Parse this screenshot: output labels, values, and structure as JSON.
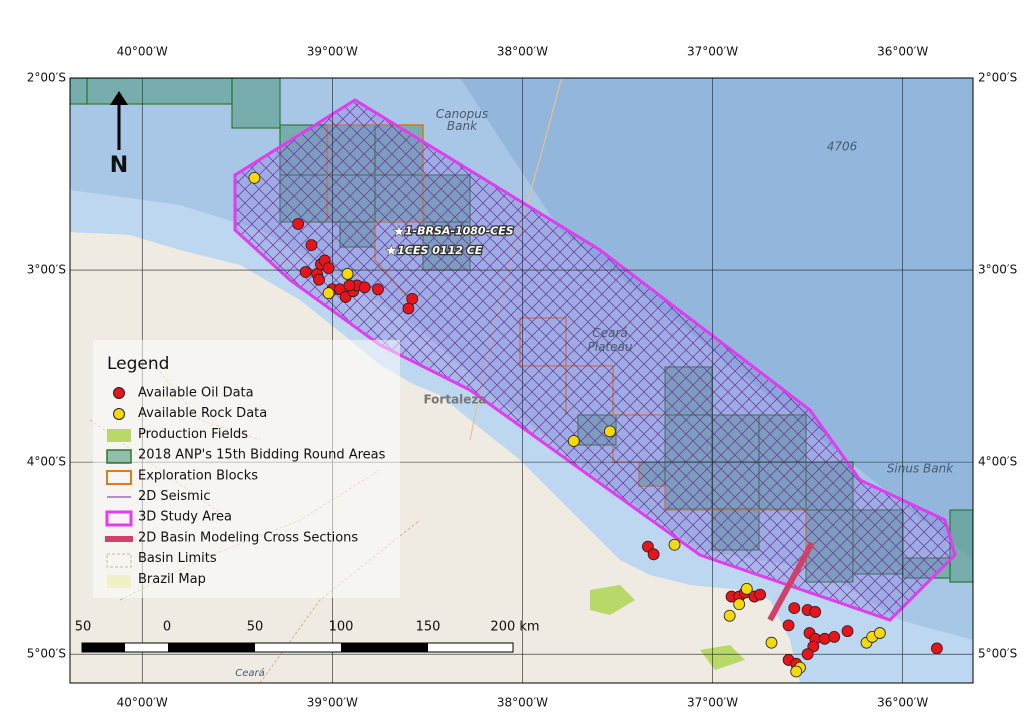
{
  "map": {
    "xlim": [
      -40.38,
      -35.63
    ],
    "ylim": [
      -2.0,
      -5.15
    ],
    "xticks": [
      {
        "value": -40,
        "label": "40°00′W"
      },
      {
        "value": -39,
        "label": "39°00′W"
      },
      {
        "value": -38,
        "label": "38°00′W"
      },
      {
        "value": -37,
        "label": "37°00′W"
      },
      {
        "value": -36,
        "label": "36°00′W"
      }
    ],
    "yticks": [
      {
        "value": -2,
        "label": "2°00′S"
      },
      {
        "value": -3,
        "label": "3°00′S"
      },
      {
        "value": -4,
        "label": "4°00′S"
      },
      {
        "value": -5,
        "label": "5°00′S"
      }
    ],
    "grid": true
  },
  "north_arrow": "N",
  "legend": {
    "title": "Legend",
    "items": [
      "Available Oil Data",
      "Available Rock Data",
      "Production Fields",
      "2018 ANP's 15th Bidding Round Areas",
      "Exploration Blocks",
      "2D Seismic",
      "3D Study Area",
      "2D Basin Modeling Cross Sections",
      "Basin Limits",
      "Brazil Map"
    ]
  },
  "oil_points": {
    "color": "#e8141c",
    "lon": [
      -39.18,
      -39.11,
      -39.14,
      -39.08,
      -39.06,
      -39.04,
      -39.02,
      -39.07,
      -39.0,
      -38.96,
      -38.93,
      -38.89,
      -38.87,
      -38.83,
      -38.76,
      -38.91,
      -38.58,
      -38.6,
      -37.34,
      -37.31,
      -36.9,
      -36.86,
      -36.83,
      -36.78,
      -36.75,
      -36.57,
      -36.5,
      -36.46,
      -36.6,
      -36.49,
      -36.46,
      -36.41,
      -36.36,
      -36.29,
      -36.47,
      -36.5,
      -36.6,
      -36.56,
      -35.82
    ],
    "lat": [
      -2.76,
      -2.87,
      -3.01,
      -3.02,
      -2.97,
      -2.95,
      -2.99,
      -3.05,
      -3.1,
      -3.1,
      -3.14,
      -3.11,
      -3.08,
      -3.09,
      -3.1,
      -3.08,
      -3.15,
      -3.2,
      -4.44,
      -4.48,
      -4.7,
      -4.7,
      -4.68,
      -4.7,
      -4.69,
      -4.76,
      -4.77,
      -4.78,
      -4.85,
      -4.89,
      -4.92,
      -4.92,
      -4.91,
      -4.88,
      -4.96,
      -5.0,
      -5.03,
      -5.05,
      -4.97
    ]
  },
  "rock_points": {
    "color": "#f5d90a",
    "lon": [
      -39.41,
      -38.92,
      -39.02,
      -37.73,
      -37.54,
      -37.2,
      -36.82,
      -36.86,
      -36.91,
      -36.69,
      -36.19,
      -36.16,
      -36.12,
      -36.54,
      -36.56
    ],
    "lat": [
      -2.52,
      -3.02,
      -3.12,
      -3.89,
      -3.84,
      -4.43,
      -4.66,
      -4.74,
      -4.8,
      -4.94,
      -4.94,
      -4.91,
      -4.89,
      -5.07,
      -5.09
    ]
  },
  "wells": [
    {
      "name": "1-BRSA-1080-CES",
      "lon": -38.65,
      "lat": -2.8
    },
    {
      "name": "1CES 0112  CE",
      "lon": -38.69,
      "lat": -2.9
    }
  ],
  "places": {
    "canopus": [
      "Canopus",
      "Bank"
    ],
    "depth": "4706",
    "plateau": [
      "Ceará",
      "Plateau"
    ],
    "fortaleza": "Fortaleza",
    "sinus": "Sinus Bank",
    "ceara": "Ceará"
  },
  "scale_bar": [
    "50",
    "0",
    "50",
    "100",
    "150",
    "200 km"
  ]
}
